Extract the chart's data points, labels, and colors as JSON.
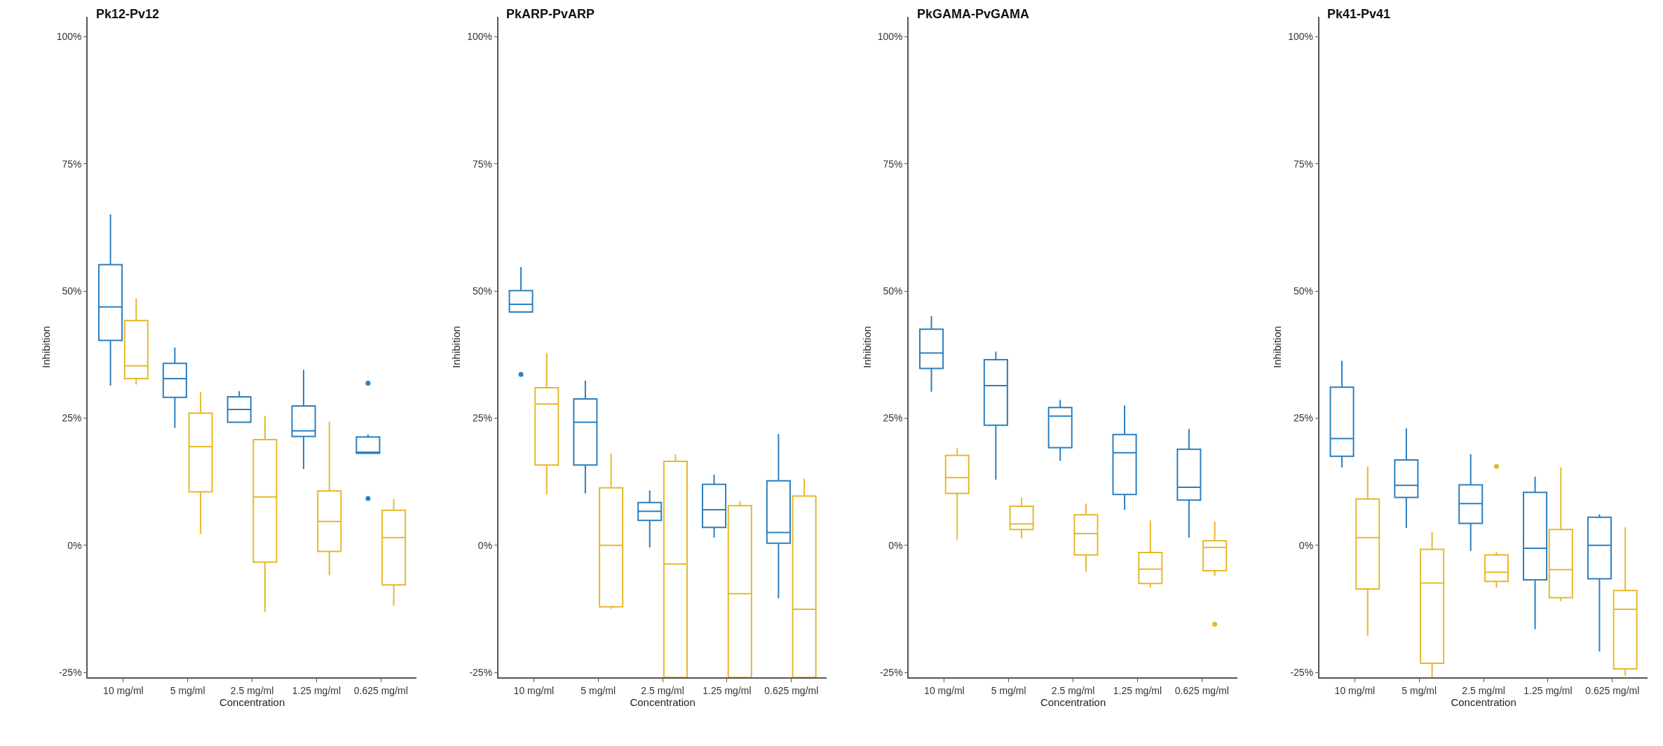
{
  "chart_data": [
    {
      "type": "box",
      "title": "Pk12-Pv12",
      "xlabel": "Concentration",
      "ylabel": "Inhibition",
      "categories": [
        "10 mg/ml",
        "5 mg/ml",
        "2.5 mg/ml",
        "1.25 mg/ml",
        "0.625 mg/ml"
      ],
      "ylim": [
        -26,
        104
      ],
      "yticks": [
        {
          "value": -25,
          "label": "-25%"
        },
        {
          "value": 0,
          "label": "0%"
        },
        {
          "value": 25,
          "label": "25%"
        },
        {
          "value": 50,
          "label": "50%"
        },
        {
          "value": 75,
          "label": "75%"
        },
        {
          "value": 100,
          "label": "100%"
        }
      ],
      "series": [
        {
          "color": "#2b7fc0",
          "boxes": [
            {
              "low": 31.4,
              "q1": 40.3,
              "median": 46.9,
              "q3": 55.2,
              "high": 65.1
            },
            {
              "low": 23.1,
              "q1": 29.1,
              "median": 32.8,
              "q3": 35.8,
              "high": 38.9
            },
            {
              "low": 24.2,
              "q1": 24.2,
              "median": 26.7,
              "q3": 29.2,
              "high": 30.3
            },
            {
              "low": 15.0,
              "q1": 21.4,
              "median": 22.5,
              "q3": 27.4,
              "high": 34.5
            },
            {
              "low": 18.1,
              "q1": 18.1,
              "median": 18.3,
              "q3": 21.3,
              "high": 21.8,
              "outliers": [
                31.9,
                9.2
              ]
            }
          ]
        },
        {
          "color": "#e6b82a",
          "boxes": [
            {
              "low": 31.6,
              "q1": 32.8,
              "median": 35.3,
              "q3": 44.2,
              "high": 48.6
            },
            {
              "low": 2.2,
              "q1": 10.5,
              "median": 19.4,
              "q3": 26.0,
              "high": 30.1
            },
            {
              "low": -13.1,
              "q1": -3.3,
              "median": 9.5,
              "q3": 20.8,
              "high": 25.4
            },
            {
              "low": -5.9,
              "q1": -1.2,
              "median": 4.7,
              "q3": 10.7,
              "high": 24.3
            },
            {
              "low": -11.9,
              "q1": -7.8,
              "median": 1.5,
              "q3": 6.9,
              "high": 9.1
            }
          ]
        }
      ]
    },
    {
      "type": "box",
      "title": "PkARP-PvARP",
      "xlabel": "Concentration",
      "ylabel": "Inhibition",
      "categories": [
        "10 mg/ml",
        "5 mg/ml",
        "2.5 mg/ml",
        "1.25 mg/ml",
        "0.625 mg/ml"
      ],
      "ylim": [
        -26,
        104
      ],
      "yticks": [
        {
          "value": -25,
          "label": "-25%"
        },
        {
          "value": 0,
          "label": "0%"
        },
        {
          "value": 25,
          "label": "25%"
        },
        {
          "value": 50,
          "label": "50%"
        },
        {
          "value": 75,
          "label": "75%"
        },
        {
          "value": 100,
          "label": "100%"
        }
      ],
      "series": [
        {
          "color": "#2b7fc0",
          "boxes": [
            {
              "low": 45.9,
              "q1": 45.9,
              "median": 47.4,
              "q3": 50.1,
              "high": 54.7,
              "outliers": [
                33.6
              ]
            },
            {
              "low": 10.2,
              "q1": 15.8,
              "median": 24.2,
              "q3": 28.8,
              "high": 32.4
            },
            {
              "low": -0.4,
              "q1": 4.9,
              "median": 6.7,
              "q3": 8.4,
              "high": 10.8
            },
            {
              "low": 1.5,
              "q1": 3.5,
              "median": 7.0,
              "q3": 12.0,
              "high": 13.9
            },
            {
              "low": -10.4,
              "q1": 0.4,
              "median": 2.5,
              "q3": 12.7,
              "high": 21.9
            }
          ]
        },
        {
          "color": "#e6b82a",
          "boxes": [
            {
              "low": 10.0,
              "q1": 15.8,
              "median": 27.8,
              "q3": 31.0,
              "high": 37.8
            },
            {
              "low": -12.5,
              "q1": -12.1,
              "median": 0,
              "q3": 11.3,
              "high": 18.1
            },
            {
              "low": -26,
              "q1": -26,
              "median": -3.7,
              "q3": 16.5,
              "high": 17.9
            },
            {
              "low": -26,
              "q1": -26,
              "median": -9.5,
              "q3": 7.8,
              "high": 8.7
            },
            {
              "low": -26,
              "q1": -26,
              "median": -12.6,
              "q3": 9.7,
              "high": 13.1
            }
          ]
        }
      ]
    },
    {
      "type": "box",
      "title": "PkGAMA-PvGAMA",
      "xlabel": "Concentration",
      "ylabel": "Inhibition",
      "categories": [
        "10 mg/ml",
        "5 mg/ml",
        "2.5 mg/ml",
        "1.25 mg/ml",
        "0.625 mg/ml"
      ],
      "ylim": [
        -26,
        104
      ],
      "yticks": [
        {
          "value": -25,
          "label": "-25%"
        },
        {
          "value": 0,
          "label": "0%"
        },
        {
          "value": 25,
          "label": "25%"
        },
        {
          "value": 50,
          "label": "50%"
        },
        {
          "value": 75,
          "label": "75%"
        },
        {
          "value": 100,
          "label": "100%"
        }
      ],
      "series": [
        {
          "color": "#2b7fc0",
          "boxes": [
            {
              "low": 30.2,
              "q1": 34.8,
              "median": 37.8,
              "q3": 42.5,
              "high": 45.1
            },
            {
              "low": 12.9,
              "q1": 23.6,
              "median": 31.4,
              "q3": 36.5,
              "high": 38.1
            },
            {
              "low": 16.6,
              "q1": 19.2,
              "median": 25.4,
              "q3": 27.1,
              "high": 28.6
            },
            {
              "low": 7.0,
              "q1": 10.0,
              "median": 18.2,
              "q3": 21.8,
              "high": 27.5
            },
            {
              "low": 1.5,
              "q1": 8.9,
              "median": 11.4,
              "q3": 18.9,
              "high": 22.9
            }
          ]
        },
        {
          "color": "#e6b82a",
          "boxes": [
            {
              "low": 1.1,
              "q1": 10.2,
              "median": 13.3,
              "q3": 17.7,
              "high": 19.2
            },
            {
              "low": 1.4,
              "q1": 3.1,
              "median": 4.2,
              "q3": 7.7,
              "high": 9.4
            },
            {
              "low": -5.2,
              "q1": -1.9,
              "median": 2.3,
              "q3": 6.0,
              "high": 8.2
            },
            {
              "low": -8.3,
              "q1": -7.5,
              "median": -4.7,
              "q3": -1.4,
              "high": 4.9
            },
            {
              "low": -6.0,
              "q1": -5.0,
              "median": -0.4,
              "q3": 0.9,
              "high": 4.7,
              "outliers": [
                -15.5
              ]
            }
          ]
        }
      ]
    },
    {
      "type": "box",
      "title": "Pk41-Pv41",
      "xlabel": "Concentration",
      "ylabel": "Inhibition",
      "categories": [
        "10 mg/ml",
        "5 mg/ml",
        "2.5 mg/ml",
        "1.25 mg/ml",
        "0.625 mg/ml"
      ],
      "ylim": [
        -26,
        104
      ],
      "yticks": [
        {
          "value": -25,
          "label": "-25%"
        },
        {
          "value": 0,
          "label": "0%"
        },
        {
          "value": 25,
          "label": "25%"
        },
        {
          "value": 50,
          "label": "50%"
        },
        {
          "value": 75,
          "label": "75%"
        },
        {
          "value": 100,
          "label": "100%"
        }
      ],
      "series": [
        {
          "color": "#2b7fc0",
          "boxes": [
            {
              "low": 15.3,
              "q1": 17.5,
              "median": 21.0,
              "q3": 31.1,
              "high": 36.3
            },
            {
              "low": 3.4,
              "q1": 9.4,
              "median": 11.8,
              "q3": 16.8,
              "high": 23.0
            },
            {
              "low": -1.1,
              "q1": 4.3,
              "median": 8.2,
              "q3": 11.9,
              "high": 17.9
            },
            {
              "low": -16.5,
              "q1": -6.8,
              "median": -0.6,
              "q3": 10.4,
              "high": 13.5
            },
            {
              "low": -20.9,
              "q1": -6.6,
              "median": 0,
              "q3": 5.5,
              "high": 6.1
            }
          ]
        },
        {
          "color": "#e6b82a",
          "boxes": [
            {
              "low": -17.8,
              "q1": -8.6,
              "median": 1.5,
              "q3": 9.1,
              "high": 15.5
            },
            {
              "low": -26,
              "q1": -23.2,
              "median": -7.4,
              "q3": -0.8,
              "high": 2.6
            },
            {
              "low": -8.3,
              "q1": -7.1,
              "median": -5.3,
              "q3": -1.9,
              "high": -1.3,
              "outliers": [
                15.5
              ]
            },
            {
              "low": -11.0,
              "q1": -10.3,
              "median": -4.8,
              "q3": 3.1,
              "high": 15.3
            },
            {
              "low": -25.6,
              "q1": -24.3,
              "median": -12.6,
              "q3": -8.9,
              "high": 3.5
            }
          ]
        }
      ]
    }
  ]
}
